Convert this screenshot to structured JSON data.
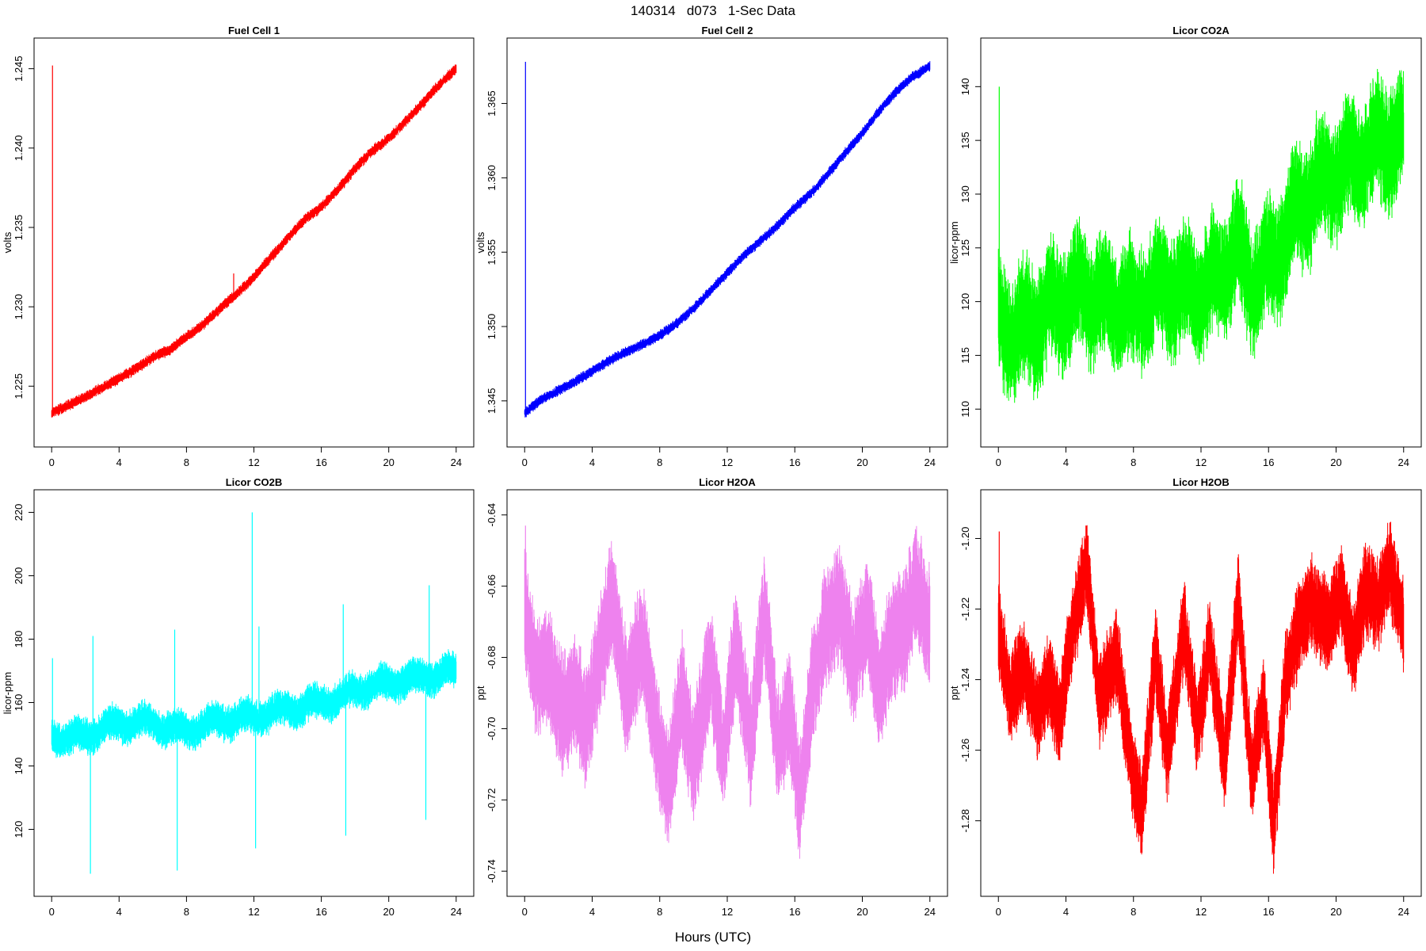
{
  "figure": {
    "title": "140314   d073   1-Sec Data",
    "xlabel": "Hours (UTC)"
  },
  "chart_data": [
    {
      "type": "line",
      "title": "Fuel Cell 1",
      "ylabel": "volts",
      "color": "#ff0000",
      "xlim": [
        0,
        24
      ],
      "ylim": [
        1.2222,
        1.2459
      ],
      "xticks": [
        "0",
        "4",
        "8",
        "12",
        "16",
        "20",
        "24"
      ],
      "yticks": [
        "1.225",
        "1.230",
        "1.235",
        "1.240",
        "1.245"
      ],
      "band": 0.0003,
      "noise": 0.0001,
      "osc_period": 0,
      "trend_x": [
        0,
        1,
        2,
        3,
        4,
        5,
        6,
        7,
        8,
        9,
        10,
        11,
        12,
        13,
        14,
        15,
        16,
        17,
        18,
        19,
        20,
        21,
        22,
        23,
        24
      ],
      "trend_y": [
        1.2233,
        1.2238,
        1.2243,
        1.2249,
        1.2255,
        1.2261,
        1.2268,
        1.2273,
        1.2281,
        1.2289,
        1.2299,
        1.2308,
        1.2319,
        1.2331,
        1.2343,
        1.2355,
        1.2363,
        1.2374,
        1.2387,
        1.2398,
        1.2406,
        1.2417,
        1.2428,
        1.244,
        1.245
      ],
      "spikes": [
        [
          0.05,
          1.2452
        ],
        [
          10.8,
          1.2321
        ]
      ]
    },
    {
      "type": "line",
      "title": "Fuel Cell 2",
      "ylabel": "volts",
      "color": "#0000ff",
      "xlim": [
        0,
        24
      ],
      "ylim": [
        1.343,
        1.3683
      ],
      "xticks": [
        "0",
        "4",
        "8",
        "12",
        "16",
        "20",
        "24"
      ],
      "yticks": [
        "1.345",
        "1.350",
        "1.355",
        "1.360",
        "1.365"
      ],
      "band": 0.0003,
      "noise": 0.0001,
      "osc_period": 0,
      "trend_x": [
        0,
        1,
        2,
        3,
        4,
        5,
        6,
        7,
        8,
        9,
        10,
        11,
        12,
        13,
        14,
        15,
        16,
        17,
        18,
        19,
        20,
        21,
        22,
        23,
        24
      ],
      "trend_y": [
        1.3442,
        1.3451,
        1.3457,
        1.3463,
        1.347,
        1.3477,
        1.3483,
        1.3488,
        1.3494,
        1.3502,
        1.3512,
        1.3524,
        1.3536,
        1.3548,
        1.3558,
        1.3568,
        1.358,
        1.359,
        1.3603,
        1.3617,
        1.363,
        1.3645,
        1.3658,
        1.3668,
        1.3675
      ],
      "spikes": [
        [
          0.05,
          1.3678
        ]
      ]
    },
    {
      "type": "line",
      "title": "Licor CO2A",
      "ylabel": "licor-ppm",
      "color": "#00ff00",
      "xlim": [
        0,
        24
      ],
      "ylim": [
        108,
        143
      ],
      "xticks": [
        "0",
        "4",
        "8",
        "12",
        "16",
        "20",
        "24"
      ],
      "yticks": [
        "110",
        "115",
        "120",
        "125",
        "130",
        "135",
        "140"
      ],
      "band": 5,
      "noise": 1.5,
      "osc_period": 1.6,
      "osc_amp": 1.4,
      "trend_x": [
        0,
        1,
        2,
        3,
        4,
        5,
        6,
        7,
        8,
        9,
        10,
        11,
        12,
        13,
        14,
        15,
        16,
        17,
        18,
        19,
        20,
        21,
        22,
        23,
        24
      ],
      "trend_y": [
        118,
        117,
        118,
        119,
        120,
        121,
        120,
        120,
        119,
        121,
        121,
        121,
        121,
        122,
        125,
        122,
        123,
        126,
        129,
        131,
        132,
        133,
        134,
        135,
        135
      ],
      "spikes": [
        [
          0.05,
          140
        ]
      ]
    },
    {
      "type": "line",
      "title": "Licor CO2B",
      "ylabel": "licor-ppm",
      "color": "#00ffff",
      "xlim": [
        0,
        24
      ],
      "ylim": [
        104,
        222
      ],
      "xticks": [
        "0",
        "4",
        "8",
        "12",
        "16",
        "20",
        "24"
      ],
      "yticks": [
        "120",
        "140",
        "160",
        "180",
        "200",
        "220"
      ],
      "band": 5,
      "noise": 1.5,
      "osc_period": 2.0,
      "osc_amp": 1.5,
      "trend_x": [
        0,
        1,
        2,
        3,
        4,
        5,
        6,
        7,
        8,
        9,
        10,
        11,
        12,
        13,
        14,
        15,
        16,
        17,
        18,
        19,
        20,
        21,
        22,
        23,
        24
      ],
      "trend_y": [
        150,
        149,
        149,
        152,
        153,
        154,
        153,
        152,
        151,
        153,
        154,
        155,
        155,
        157,
        158,
        159,
        160,
        161,
        164,
        165,
        166,
        167,
        168,
        169,
        170
      ],
      "spikes": [
        [
          0.05,
          174
        ],
        [
          2.3,
          106
        ],
        [
          2.45,
          181
        ],
        [
          7.3,
          183
        ],
        [
          7.45,
          107
        ],
        [
          11.9,
          220
        ],
        [
          12.1,
          114
        ],
        [
          12.3,
          184
        ],
        [
          17.3,
          191
        ],
        [
          17.45,
          118
        ],
        [
          22.2,
          123
        ],
        [
          22.4,
          197
        ]
      ]
    },
    {
      "type": "line",
      "title": "Licor H2OA",
      "ylabel": "ppt",
      "color": "#ee82ee",
      "xlim": [
        0,
        24
      ],
      "ylim": [
        -0.7425,
        -0.6375
      ],
      "xticks": [
        "0",
        "4",
        "8",
        "12",
        "16",
        "20",
        "24"
      ],
      "yticks": [
        "-0.74",
        "-0.72",
        "-0.70",
        "-0.68",
        "-0.66",
        "-0.64"
      ],
      "band": 0.015,
      "noise": 0.004,
      "osc_period": 0,
      "trend_x": [
        0,
        0.7,
        1.5,
        2.3,
        3.0,
        3.6,
        4.3,
        5.2,
        6.0,
        7.0,
        8.0,
        8.5,
        9.3,
        10.0,
        11.0,
        11.8,
        12.5,
        13.4,
        14.2,
        15.0,
        15.7,
        16.3,
        17.0,
        17.8,
        18.6,
        19.5,
        20.3,
        21.0,
        21.7,
        22.5,
        23.2,
        24.0
      ],
      "trend_y": [
        -0.666,
        -0.685,
        -0.684,
        -0.697,
        -0.688,
        -0.7,
        -0.684,
        -0.663,
        -0.69,
        -0.675,
        -0.708,
        -0.718,
        -0.69,
        -0.71,
        -0.682,
        -0.708,
        -0.676,
        -0.705,
        -0.666,
        -0.706,
        -0.695,
        -0.72,
        -0.69,
        -0.672,
        -0.665,
        -0.682,
        -0.668,
        -0.69,
        -0.675,
        -0.672,
        -0.66,
        -0.672
      ],
      "spikes": [
        [
          0.05,
          -0.643
        ]
      ]
    },
    {
      "type": "line",
      "title": "Licor H2OB",
      "ylabel": "ppt",
      "color": "#ff0000",
      "xlim": [
        0,
        24
      ],
      "ylim": [
        -1.2968,
        -1.1908
      ],
      "xticks": [
        "0",
        "4",
        "8",
        "12",
        "16",
        "20",
        "24"
      ],
      "yticks": [
        "-1.28",
        "-1.26",
        "-1.24",
        "-1.22",
        "-1.20"
      ],
      "band": 0.012,
      "noise": 0.003,
      "osc_period": 0,
      "trend_x": [
        0,
        0.7,
        1.5,
        2.3,
        3.0,
        3.6,
        4.3,
        5.2,
        6.0,
        7.0,
        8.0,
        8.5,
        9.3,
        10.0,
        11.0,
        11.8,
        12.5,
        13.4,
        14.2,
        15.0,
        15.7,
        16.3,
        17.0,
        17.8,
        18.6,
        19.5,
        20.3,
        21.0,
        21.7,
        22.5,
        23.2,
        24.0
      ],
      "trend_y": [
        -1.225,
        -1.245,
        -1.236,
        -1.25,
        -1.24,
        -1.252,
        -1.228,
        -1.208,
        -1.246,
        -1.233,
        -1.268,
        -1.278,
        -1.232,
        -1.262,
        -1.225,
        -1.255,
        -1.23,
        -1.263,
        -1.218,
        -1.268,
        -1.246,
        -1.282,
        -1.24,
        -1.225,
        -1.218,
        -1.226,
        -1.215,
        -1.233,
        -1.215,
        -1.218,
        -1.208,
        -1.225
      ],
      "spikes": [
        [
          0.05,
          -1.198
        ]
      ]
    }
  ]
}
